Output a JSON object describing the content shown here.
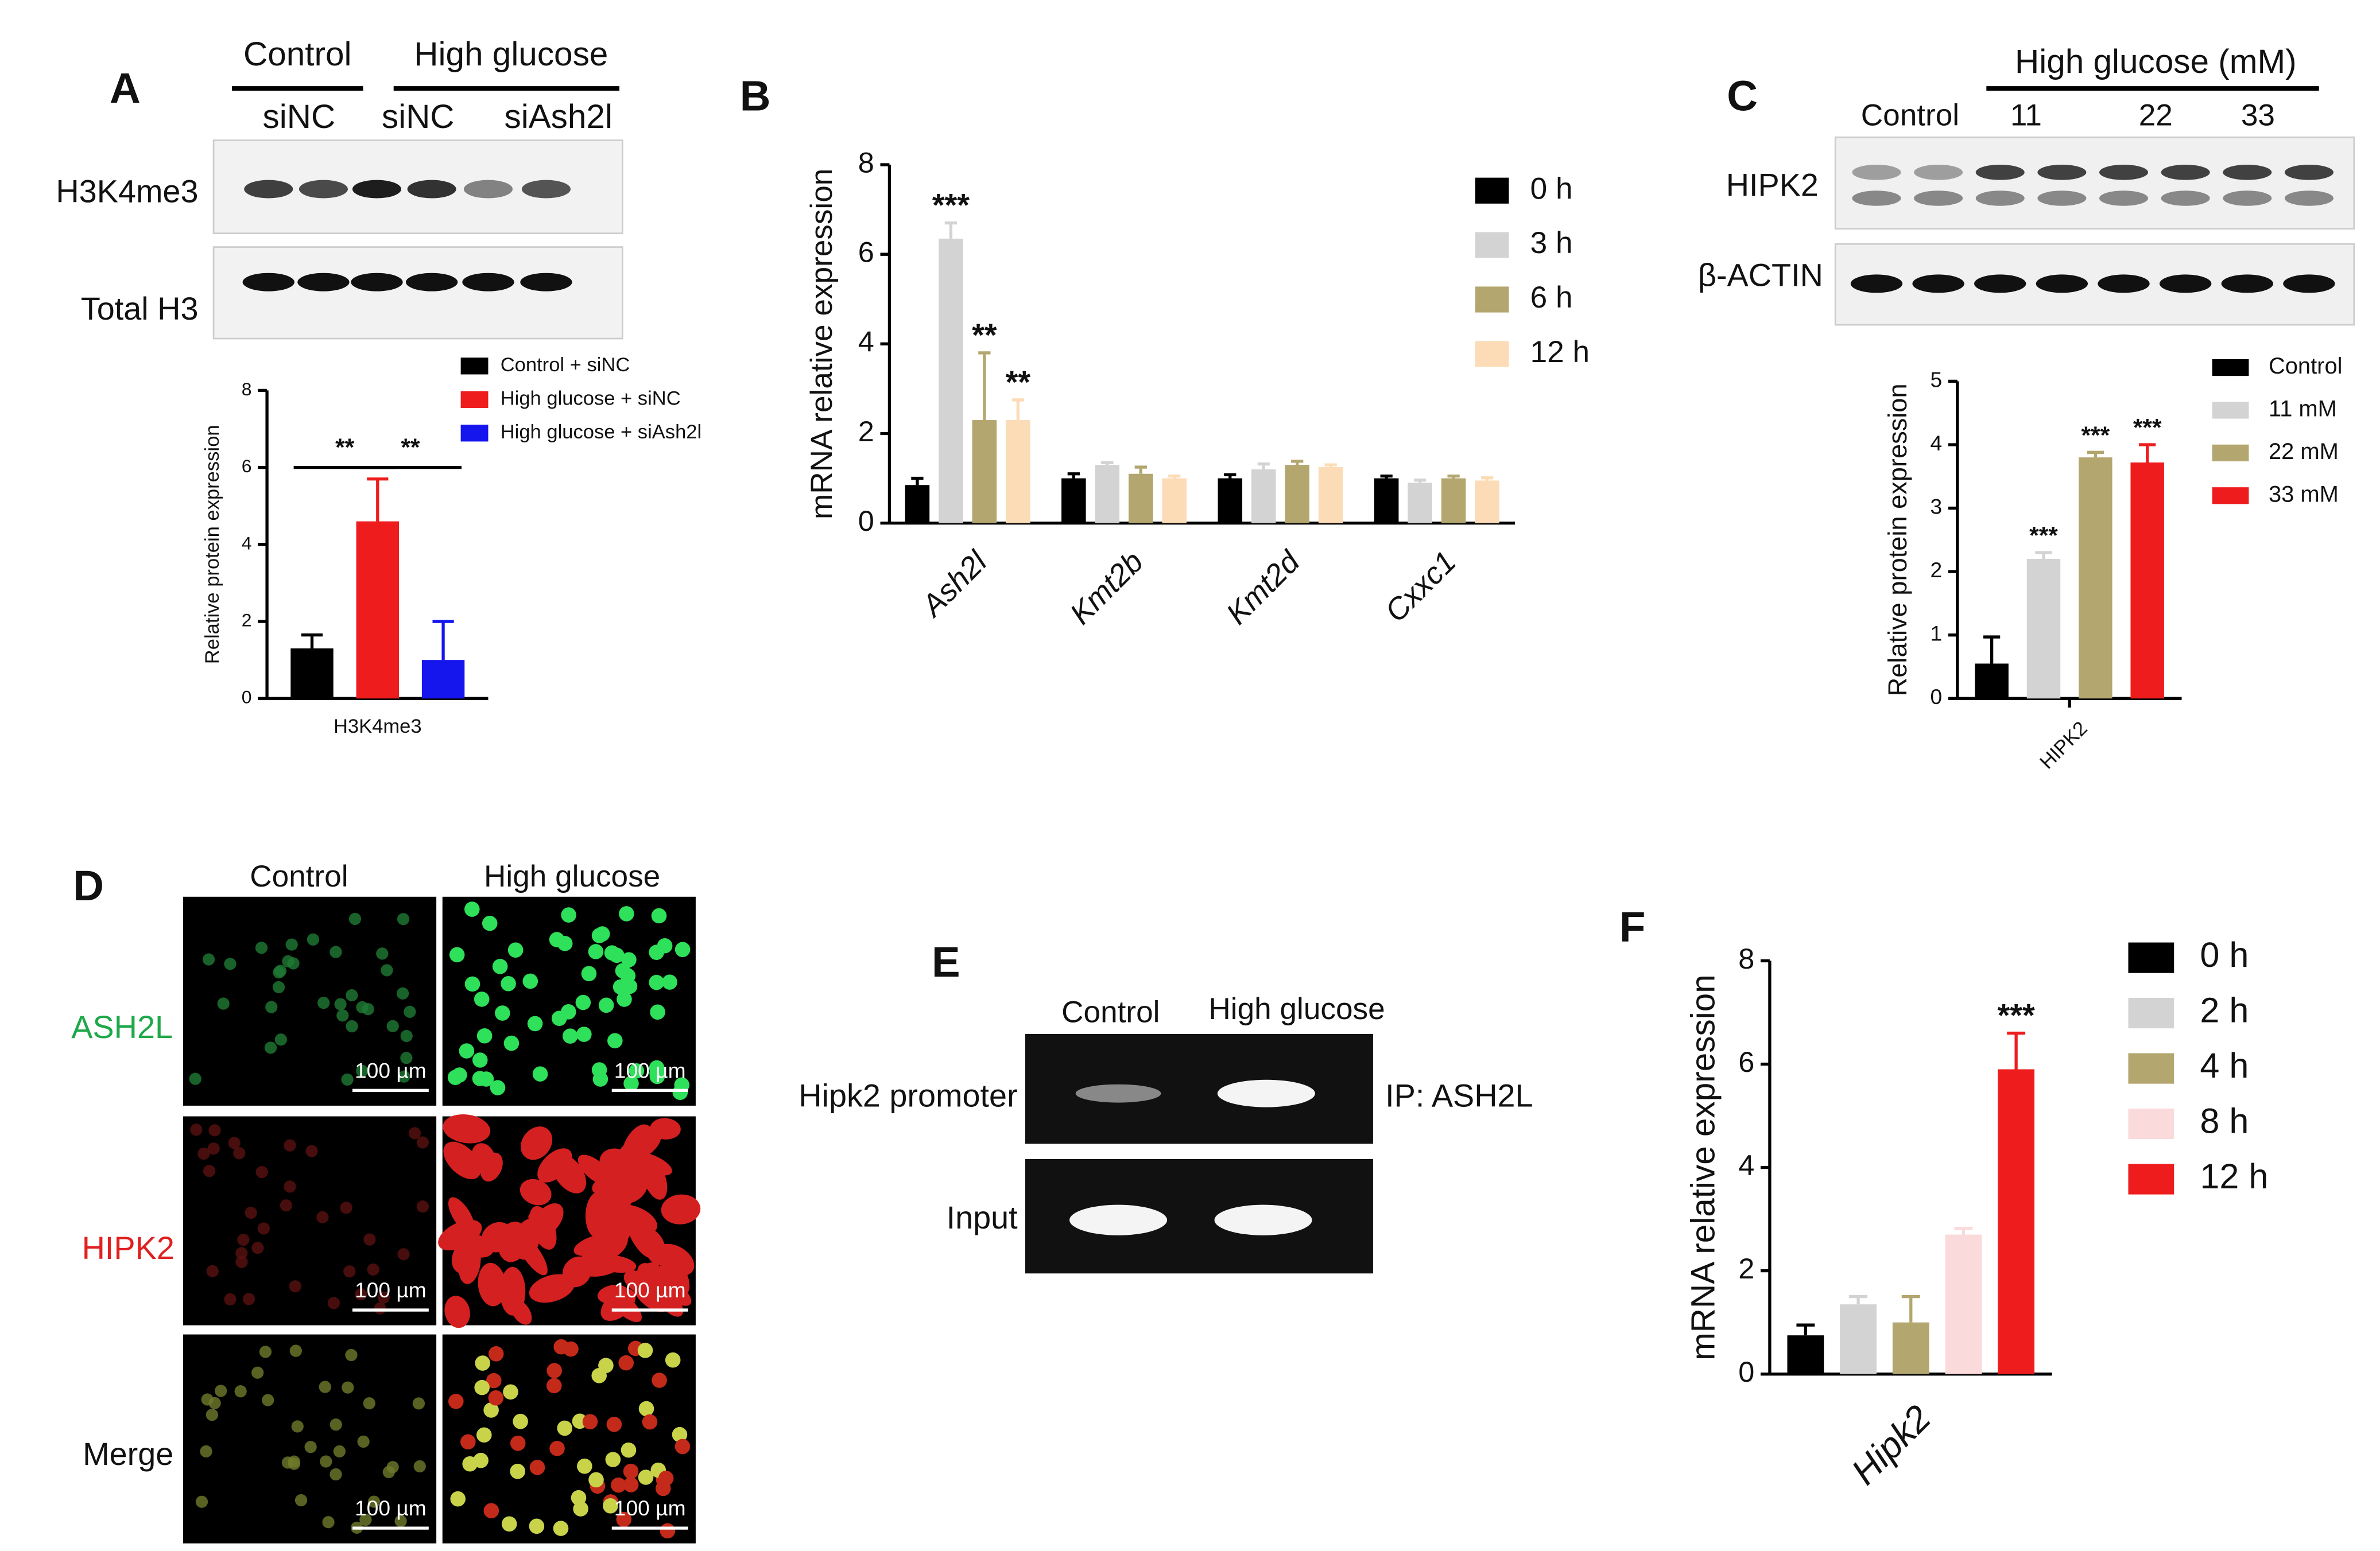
{
  "panel_labels": [
    "A",
    "B",
    "C",
    "D",
    "E",
    "F"
  ],
  "blot_A": {
    "group_labels": [
      "Control",
      "High glucose"
    ],
    "lane_labels": [
      "siNC",
      "siNC",
      "siAsh2l"
    ],
    "row_labels": [
      "H3K4me3",
      "Total H3"
    ]
  },
  "blot_C": {
    "group_label": "High glucose (mM)",
    "lane_labels": [
      "Control",
      "11",
      "22",
      "33"
    ],
    "row_labels": [
      "HIPK2",
      "β-ACTIN"
    ]
  },
  "panel_D": {
    "column_labels": [
      "Control",
      "High glucose"
    ],
    "row_labels": [
      "ASH2L",
      "HIPK2",
      "Merge"
    ],
    "scale_bar": "100 µm"
  },
  "panel_E": {
    "column_labels": [
      "Control",
      "High glucose"
    ],
    "row_labels": [
      "Hipk2 promoter",
      "Input"
    ],
    "ip_label": "IP: ASH2L"
  },
  "chart_data": [
    {
      "type": "bar",
      "y_label": "Relative protein expression",
      "categories": [
        "H3K4me3"
      ],
      "ylim": [
        0,
        8
      ],
      "yticks": [
        0,
        2,
        4,
        6,
        8
      ],
      "series": [
        {
          "name": "Control + siNC",
          "color": "#000000",
          "values": [
            1.3
          ],
          "errors": [
            0.35
          ]
        },
        {
          "name": "High glucose + siNC",
          "color": "#ee1c1c",
          "values": [
            4.6
          ],
          "errors": [
            1.1
          ]
        },
        {
          "name": "High glucose + siAsh2l",
          "color": "#1515ee",
          "values": [
            1.0
          ],
          "errors": [
            1.0
          ]
        }
      ],
      "comparisons": [
        "**",
        "**"
      ]
    },
    {
      "type": "bar",
      "y_label": "mRNA relative  expression",
      "categories": [
        "Ash2l",
        "Kmt2b",
        "Kmt2d",
        "Cxxc1"
      ],
      "ylim": [
        0,
        8
      ],
      "yticks": [
        0,
        2,
        4,
        6,
        8
      ],
      "series": [
        {
          "name": "0 h",
          "color": "#000000",
          "values": [
            0.85,
            1.0,
            1.0,
            1.0
          ],
          "errors": [
            0.15,
            0.1,
            0.08,
            0.05
          ]
        },
        {
          "name": "3 h",
          "color": "#d3d3d3",
          "values": [
            6.35,
            1.3,
            1.2,
            0.9
          ],
          "errors": [
            0.35,
            0.05,
            0.12,
            0.06
          ],
          "annotations": [
            "***",
            null,
            null,
            null
          ]
        },
        {
          "name": "6 h",
          "color": "#b3a66e",
          "values": [
            2.3,
            1.1,
            1.3,
            1.0
          ],
          "errors": [
            1.5,
            0.15,
            0.08,
            0.05
          ],
          "annotations": [
            "**",
            null,
            null,
            null
          ]
        },
        {
          "name": "12 h",
          "color": "#fcdcb6",
          "values": [
            2.3,
            1.0,
            1.25,
            0.95
          ],
          "errors": [
            0.45,
            0.05,
            0.05,
            0.06
          ],
          "annotations": [
            "**",
            null,
            null,
            null
          ]
        }
      ]
    },
    {
      "type": "bar",
      "y_label": "Relative protein expression",
      "categories": [
        "HIPK2"
      ],
      "ylim": [
        0,
        5
      ],
      "yticks": [
        0,
        1,
        2,
        3,
        4,
        5
      ],
      "series": [
        {
          "name": "Control",
          "color": "#000000",
          "values": [
            0.55
          ],
          "errors": [
            0.42
          ]
        },
        {
          "name": "11 mM",
          "color": "#d3d3d3",
          "values": [
            2.2
          ],
          "errors": [
            0.1
          ],
          "annotations": [
            "***"
          ]
        },
        {
          "name": "22 mM",
          "color": "#b3a66e",
          "values": [
            3.8
          ],
          "errors": [
            0.08
          ],
          "annotations": [
            "***"
          ]
        },
        {
          "name": "33 mM",
          "color": "#ee1c1c",
          "values": [
            3.72
          ],
          "errors": [
            0.28
          ],
          "annotations": [
            "***"
          ]
        }
      ]
    },
    {
      "type": "bar",
      "y_label": "mRNA relative  expression",
      "categories": [
        "Hipk2"
      ],
      "ylim": [
        0,
        8
      ],
      "yticks": [
        0,
        2,
        4,
        6,
        8
      ],
      "series": [
        {
          "name": "0 h",
          "color": "#000000",
          "values": [
            0.75
          ],
          "errors": [
            0.2
          ]
        },
        {
          "name": "2 h",
          "color": "#d3d3d3",
          "values": [
            1.35
          ],
          "errors": [
            0.15
          ]
        },
        {
          "name": "4 h",
          "color": "#b3a66e",
          "values": [
            1.0
          ],
          "errors": [
            0.5
          ]
        },
        {
          "name": "8 h",
          "color": "#fadada",
          "values": [
            2.7
          ],
          "errors": [
            0.12
          ]
        },
        {
          "name": "12 h",
          "color": "#ee1c1c",
          "values": [
            5.9
          ],
          "errors": [
            0.7
          ],
          "annotations": [
            "***"
          ]
        }
      ]
    }
  ]
}
